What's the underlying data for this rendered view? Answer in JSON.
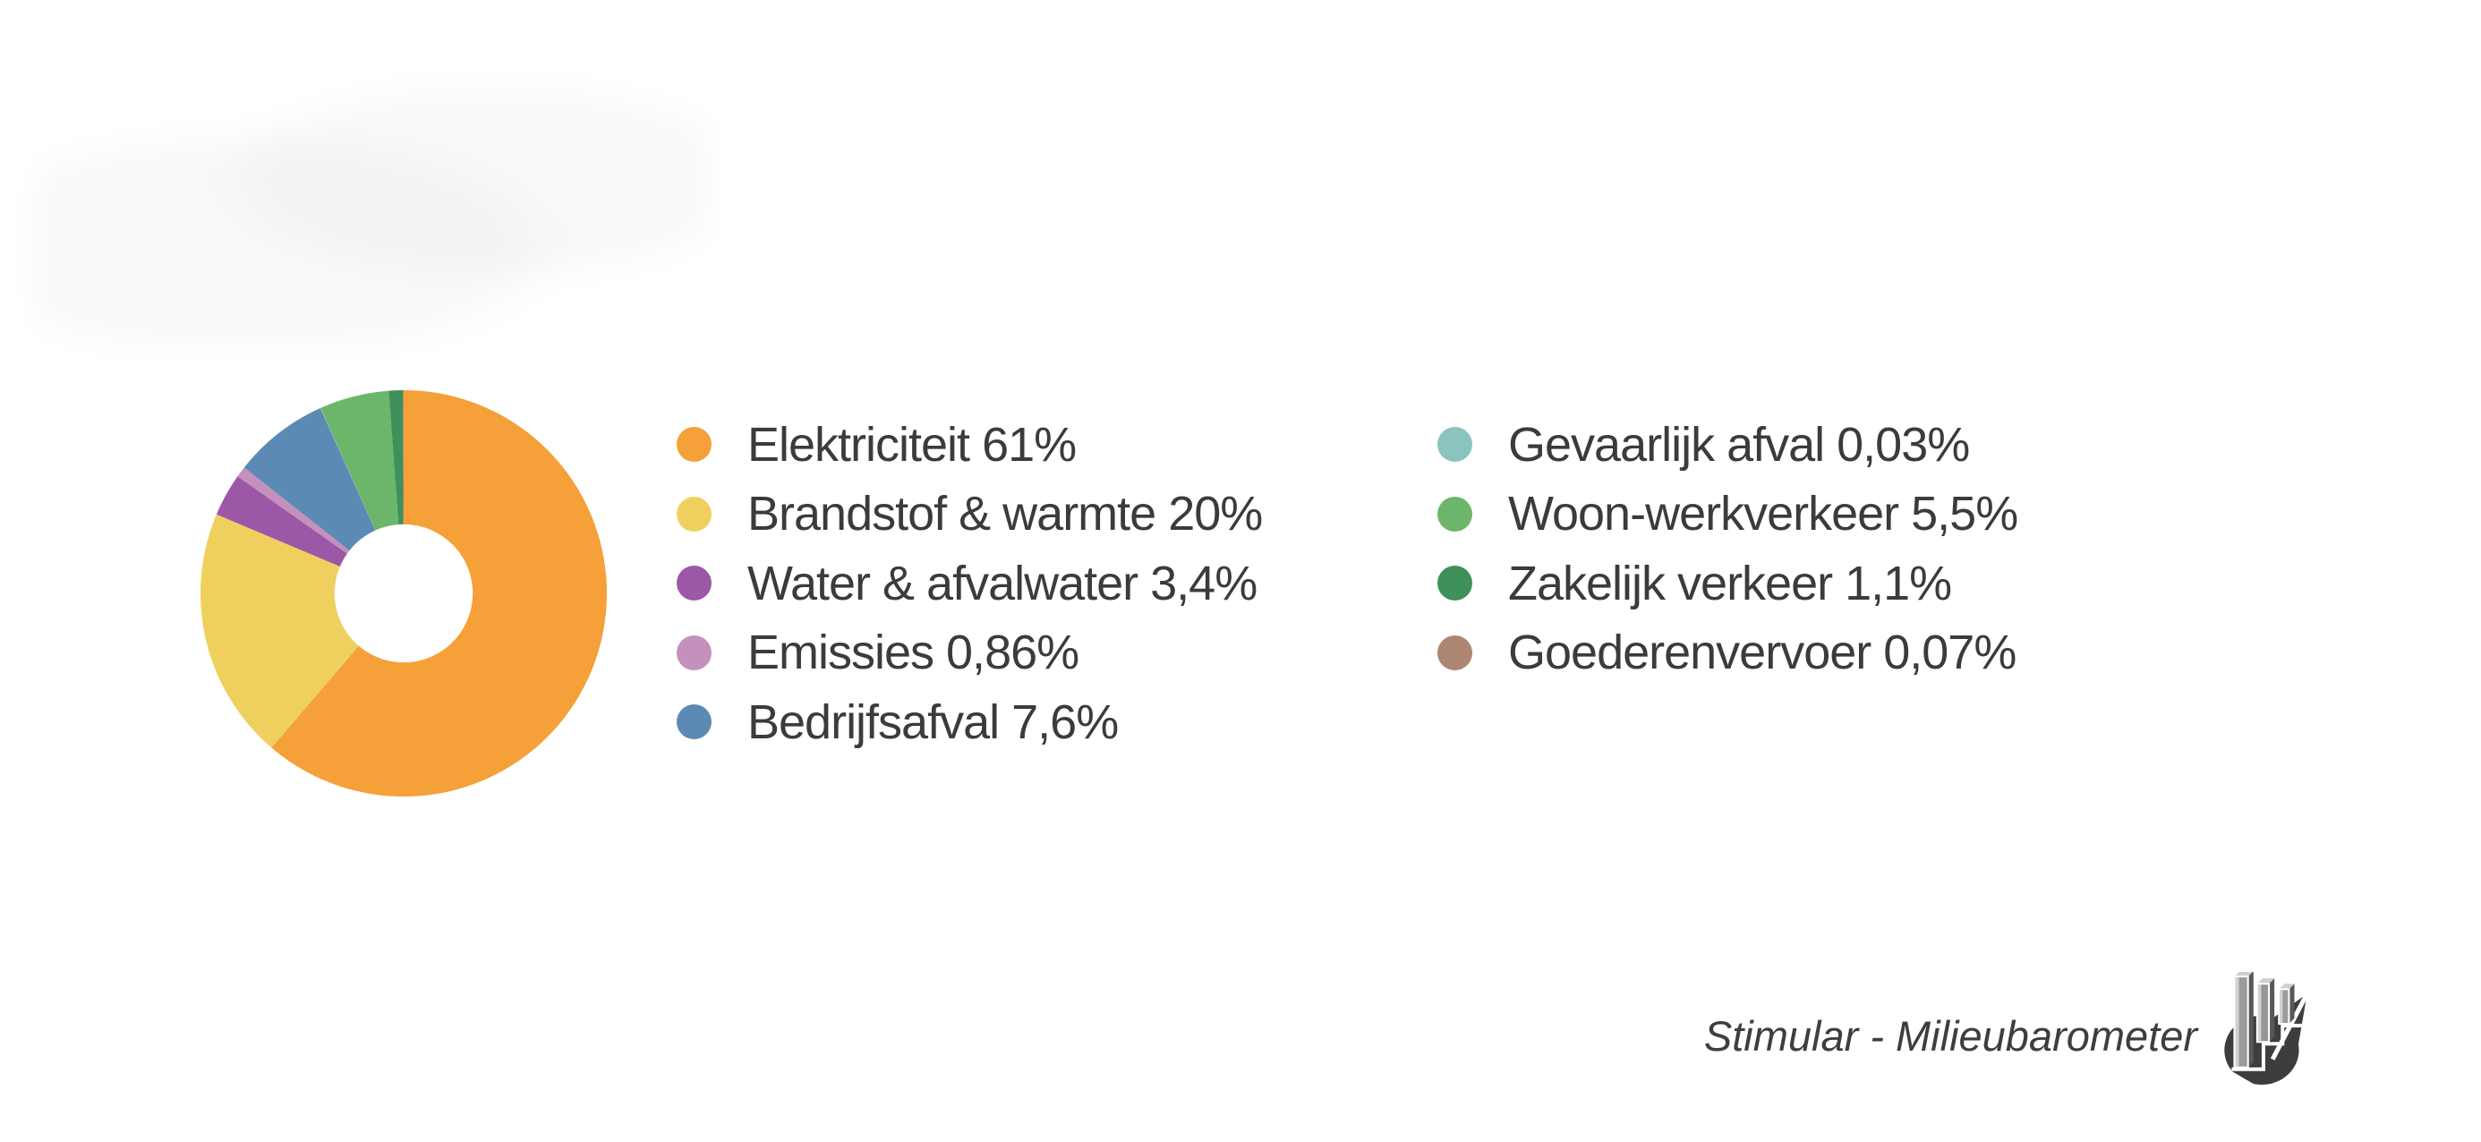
{
  "chart_data": {
    "type": "pie",
    "donut": true,
    "inner_radius_ratio": 0.34,
    "start_angle_deg": -90,
    "direction": "clockwise",
    "legend_position": "right",
    "title": "",
    "slices": [
      {
        "label": "Elektriciteit",
        "value": 61,
        "display": "Elektriciteit 61%",
        "color": "#F5A038"
      },
      {
        "label": "Brandstof & warmte",
        "value": 20,
        "display": "Brandstof & warmte 20%",
        "color": "#EFD05F"
      },
      {
        "label": "Water & afvalwater",
        "value": 3.4,
        "display": "Water & afvalwater 3,4%",
        "color": "#9C57A7"
      },
      {
        "label": "Emissies",
        "value": 0.86,
        "display": "Emissies 0,86%",
        "color": "#C490BC"
      },
      {
        "label": "Bedrijfsafval",
        "value": 7.6,
        "display": "Bedrijfsafval 7,6%",
        "color": "#5B8BB4"
      },
      {
        "label": "Gevaarlijk afval",
        "value": 0.03,
        "display": "Gevaarlijk afval 0,03%",
        "color": "#8BC4BF"
      },
      {
        "label": "Woon-werkverkeer",
        "value": 5.5,
        "display": "Woon-werkverkeer 5,5%",
        "color": "#6CB66C"
      },
      {
        "label": "Zakelijk verkeer",
        "value": 1.1,
        "display": "Zakelijk verkeer 1,1%",
        "color": "#3E9159"
      },
      {
        "label": "Goederenvervoer",
        "value": 0.07,
        "display": "Goederenvervoer 0,07%",
        "color": "#AD8573"
      }
    ]
  },
  "legend": {
    "left_column_indices": [
      0,
      1,
      2,
      3,
      4
    ],
    "right_column_indices": [
      5,
      6,
      7,
      8
    ]
  },
  "footer": {
    "credit": "Stimular - Milieubarometer"
  },
  "colors": {
    "legend_text": "#3B3B3B",
    "credit_text": "#3E3E3E",
    "logo_dark": "#3D3D3D",
    "background": "#FFFFFF"
  }
}
